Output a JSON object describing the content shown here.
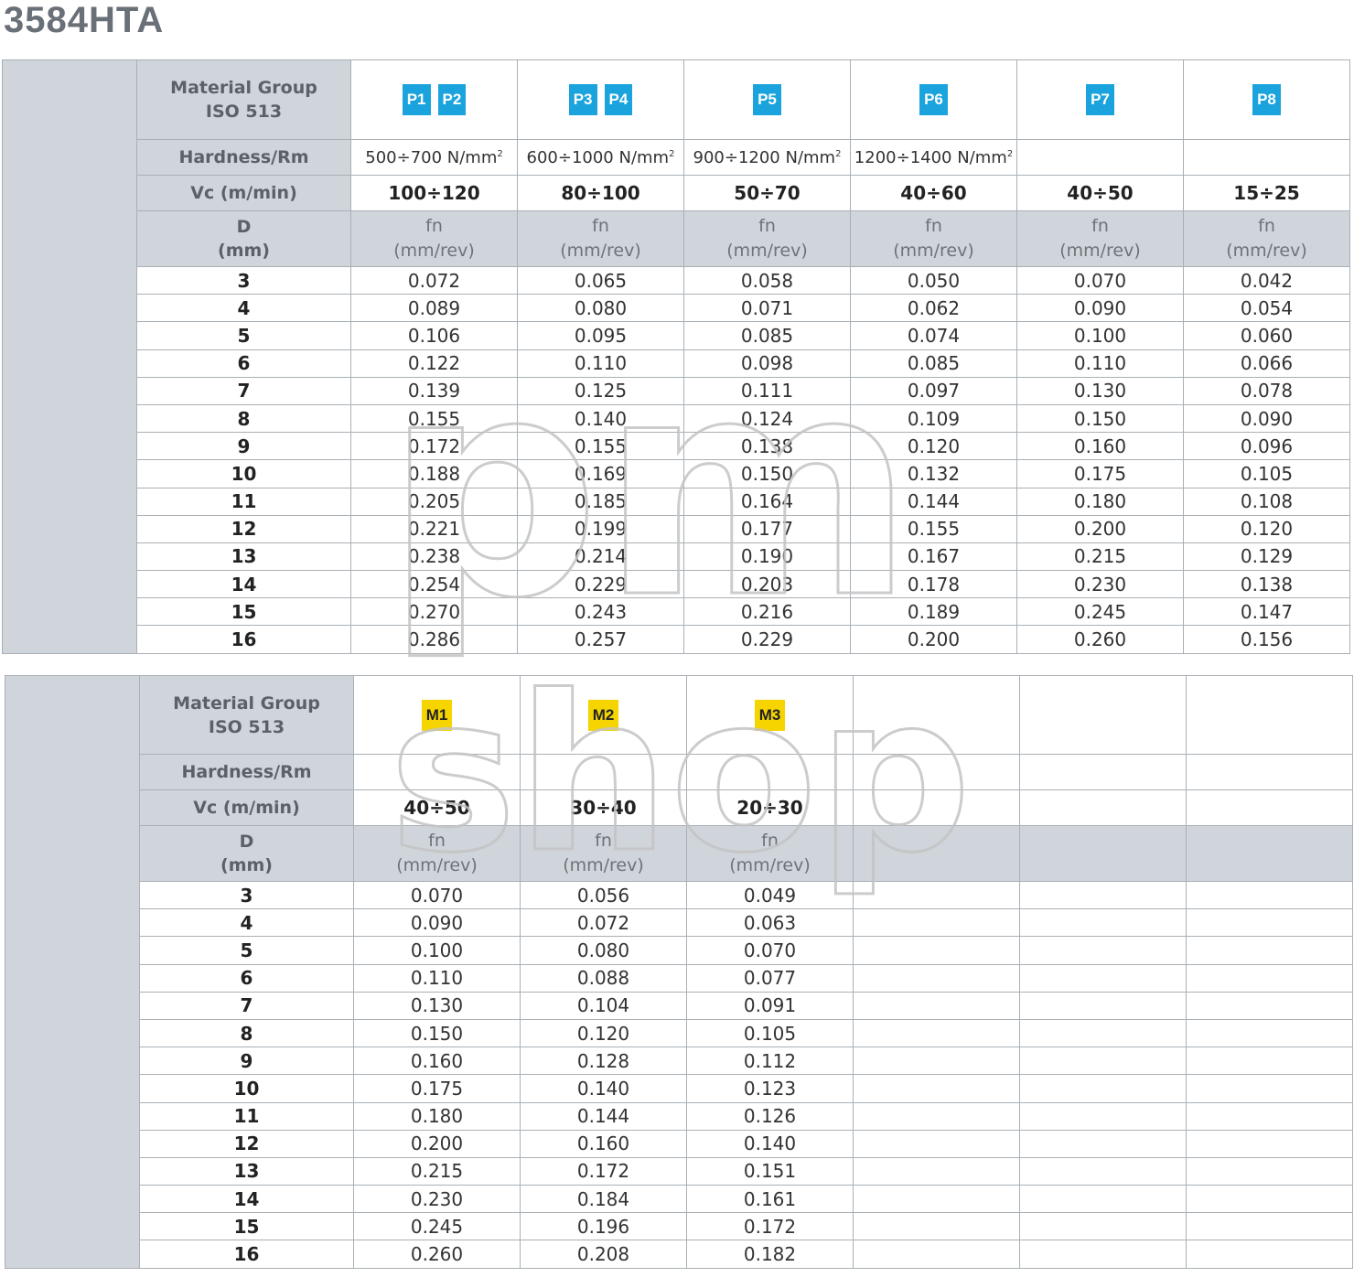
{
  "title": "3584HTA",
  "labels": {
    "material_group_line1": "Material Group",
    "material_group_line2": "ISO 513",
    "hardness": "Hardness/Rm",
    "vc": "Vc (m/min)",
    "d_line1": "D",
    "d_line2": "(mm)",
    "fn_line1": "fn",
    "fn_line2": "(mm/rev)"
  },
  "watermark": [
    "pm",
    "shop"
  ],
  "colors": {
    "p_badge": "#1ba3dd",
    "m_badge": "#f5d400",
    "header_gray": "#cfd5da"
  },
  "table1": {
    "groups": [
      {
        "badges": [
          "P1",
          "P2"
        ],
        "hardness": "500÷700 N/mm",
        "vc": "100÷120"
      },
      {
        "badges": [
          "P3",
          "P4"
        ],
        "hardness": "600÷1000 N/mm",
        "vc": "80÷100"
      },
      {
        "badges": [
          "P5"
        ],
        "hardness": "900÷1200 N/mm",
        "vc": "50÷70"
      },
      {
        "badges": [
          "P6"
        ],
        "hardness": "1200÷1400 N/mm",
        "vc": "40÷60"
      },
      {
        "badges": [
          "P7"
        ],
        "hardness": "",
        "vc": "40÷50"
      },
      {
        "badges": [
          "P8"
        ],
        "hardness": "",
        "vc": "15÷25"
      }
    ],
    "rows": [
      {
        "d": "3",
        "v": [
          "0.072",
          "0.065",
          "0.058",
          "0.050",
          "0.070",
          "0.042"
        ]
      },
      {
        "d": "4",
        "v": [
          "0.089",
          "0.080",
          "0.071",
          "0.062",
          "0.090",
          "0.054"
        ]
      },
      {
        "d": "5",
        "v": [
          "0.106",
          "0.095",
          "0.085",
          "0.074",
          "0.100",
          "0.060"
        ]
      },
      {
        "d": "6",
        "v": [
          "0.122",
          "0.110",
          "0.098",
          "0.085",
          "0.110",
          "0.066"
        ]
      },
      {
        "d": "7",
        "v": [
          "0.139",
          "0.125",
          "0.111",
          "0.097",
          "0.130",
          "0.078"
        ]
      },
      {
        "d": "8",
        "v": [
          "0.155",
          "0.140",
          "0.124",
          "0.109",
          "0.150",
          "0.090"
        ]
      },
      {
        "d": "9",
        "v": [
          "0.172",
          "0.155",
          "0.138",
          "0.120",
          "0.160",
          "0.096"
        ]
      },
      {
        "d": "10",
        "v": [
          "0.188",
          "0.169",
          "0.150",
          "0.132",
          "0.175",
          "0.105"
        ]
      },
      {
        "d": "11",
        "v": [
          "0.205",
          "0.185",
          "0.164",
          "0.144",
          "0.180",
          "0.108"
        ]
      },
      {
        "d": "12",
        "v": [
          "0.221",
          "0.199",
          "0.177",
          "0.155",
          "0.200",
          "0.120"
        ]
      },
      {
        "d": "13",
        "v": [
          "0.238",
          "0.214",
          "0.190",
          "0.167",
          "0.215",
          "0.129"
        ]
      },
      {
        "d": "14",
        "v": [
          "0.254",
          "0.229",
          "0.203",
          "0.178",
          "0.230",
          "0.138"
        ]
      },
      {
        "d": "15",
        "v": [
          "0.270",
          "0.243",
          "0.216",
          "0.189",
          "0.245",
          "0.147"
        ]
      },
      {
        "d": "16",
        "v": [
          "0.286",
          "0.257",
          "0.229",
          "0.200",
          "0.260",
          "0.156"
        ]
      }
    ]
  },
  "table2": {
    "groups": [
      {
        "badges": [
          "M1"
        ],
        "hardness": "",
        "vc": "40÷50"
      },
      {
        "badges": [
          "M2"
        ],
        "hardness": "",
        "vc": "30÷40"
      },
      {
        "badges": [
          "M3"
        ],
        "hardness": "",
        "vc": "20÷30"
      }
    ],
    "rows": [
      {
        "d": "3",
        "v": [
          "0.070",
          "0.056",
          "0.049"
        ]
      },
      {
        "d": "4",
        "v": [
          "0.090",
          "0.072",
          "0.063"
        ]
      },
      {
        "d": "5",
        "v": [
          "0.100",
          "0.080",
          "0.070"
        ]
      },
      {
        "d": "6",
        "v": [
          "0.110",
          "0.088",
          "0.077"
        ]
      },
      {
        "d": "7",
        "v": [
          "0.130",
          "0.104",
          "0.091"
        ]
      },
      {
        "d": "8",
        "v": [
          "0.150",
          "0.120",
          "0.105"
        ]
      },
      {
        "d": "9",
        "v": [
          "0.160",
          "0.128",
          "0.112"
        ]
      },
      {
        "d": "10",
        "v": [
          "0.175",
          "0.140",
          "0.123"
        ]
      },
      {
        "d": "11",
        "v": [
          "0.180",
          "0.144",
          "0.126"
        ]
      },
      {
        "d": "12",
        "v": [
          "0.200",
          "0.160",
          "0.140"
        ]
      },
      {
        "d": "13",
        "v": [
          "0.215",
          "0.172",
          "0.151"
        ]
      },
      {
        "d": "14",
        "v": [
          "0.230",
          "0.184",
          "0.161"
        ]
      },
      {
        "d": "15",
        "v": [
          "0.245",
          "0.196",
          "0.172"
        ]
      },
      {
        "d": "16",
        "v": [
          "0.260",
          "0.208",
          "0.182"
        ]
      }
    ]
  }
}
